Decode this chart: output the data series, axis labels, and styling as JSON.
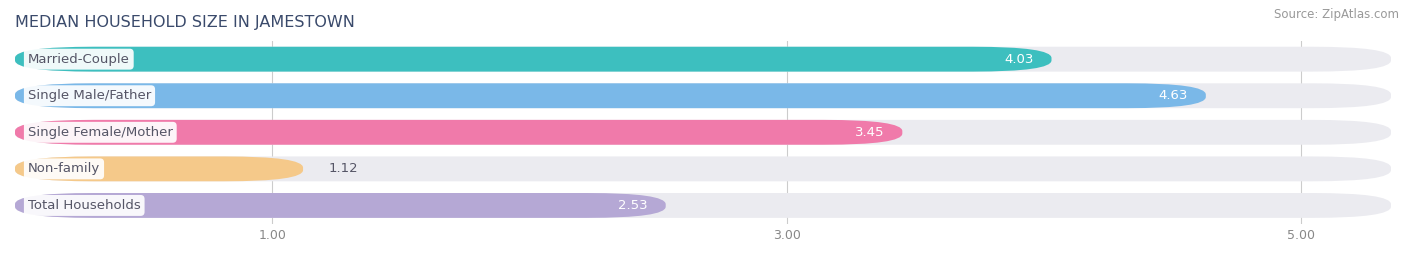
{
  "title": "MEDIAN HOUSEHOLD SIZE IN JAMESTOWN",
  "source": "Source: ZipAtlas.com",
  "categories": [
    "Married-Couple",
    "Single Male/Father",
    "Single Female/Mother",
    "Non-family",
    "Total Households"
  ],
  "values": [
    4.03,
    4.63,
    3.45,
    1.12,
    2.53
  ],
  "bar_colors": [
    "#3dbfbf",
    "#7ab8e8",
    "#f07aaa",
    "#f5c98a",
    "#b5a8d5"
  ],
  "bar_bg_color": "#ebebf0",
  "text_color": "#555566",
  "title_color": "#3a4a6b",
  "source_color": "#999999",
  "xlim": [
    0,
    5.35
  ],
  "xticks": [
    1.0,
    3.0,
    5.0
  ],
  "label_fontsize": 9.5,
  "value_fontsize": 9.5,
  "title_fontsize": 11.5,
  "source_fontsize": 8.5,
  "bar_height": 0.68,
  "figsize": [
    14.06,
    2.68
  ],
  "dpi": 100
}
